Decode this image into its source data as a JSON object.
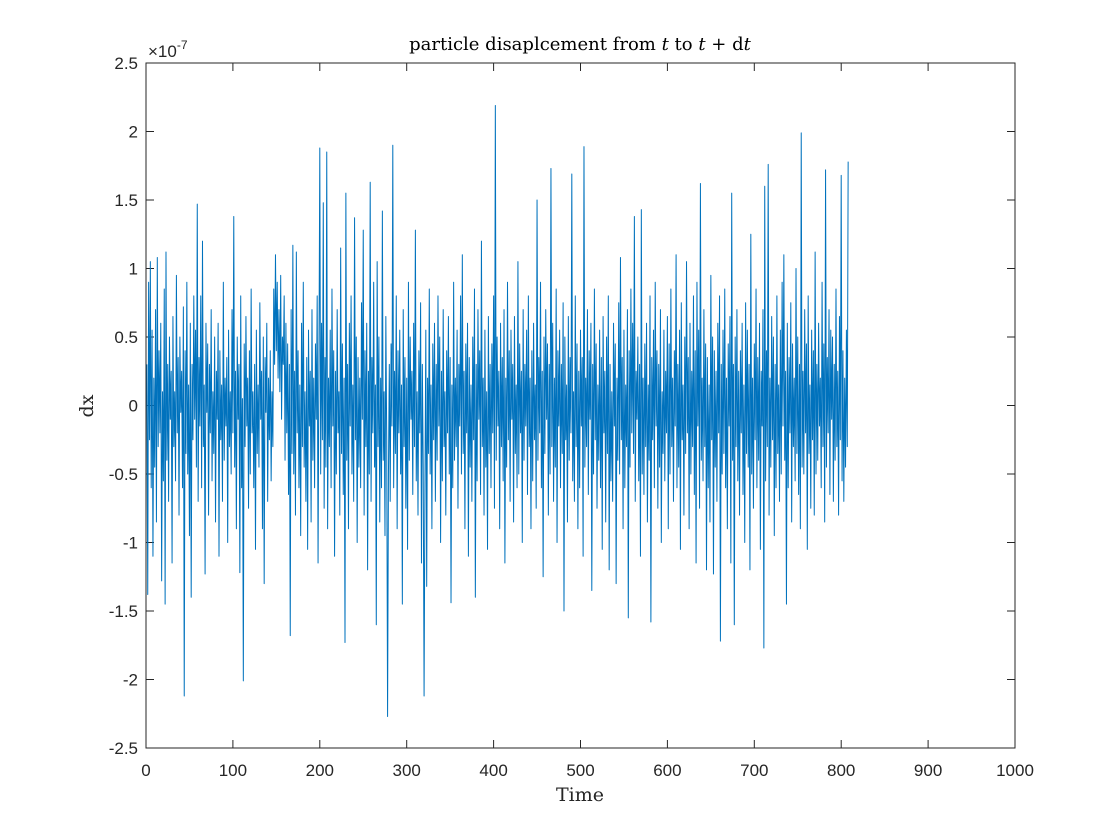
{
  "chart_data": {
    "type": "line",
    "title": "particle disaplcement from t to t + dt",
    "title_parts": [
      "particle disaplcement from ",
      "t",
      " to ",
      "t",
      " + d",
      "t"
    ],
    "xlabel": "Time",
    "ylabel": "dx",
    "exponent_label": "×10",
    "exponent_power": "-7",
    "xlim": [
      0,
      1000
    ],
    "ylim": [
      -2.5,
      2.5
    ],
    "y_scale_factor": 1e-07,
    "xticks": [
      "0",
      "100",
      "200",
      "300",
      "400",
      "500",
      "600",
      "700",
      "800",
      "900",
      "1000"
    ],
    "yticks": [
      "-2.5",
      "-2",
      "-1.5",
      "-1",
      "-0.5",
      "0",
      "0.5",
      "1",
      "1.5",
      "2",
      "2.5"
    ],
    "grid": false,
    "legend": "none",
    "series_color": "#0072BD",
    "series": [
      {
        "x_start": 1,
        "x_step": 1,
        "values": [
          0.3,
          -1.38,
          0.9,
          -0.25,
          1.05,
          -0.6,
          0.55,
          -1.1,
          0.2,
          -0.45,
          0.7,
          -0.85,
          1.08,
          -0.3,
          0.4,
          -0.2,
          0.6,
          -1.28,
          0.1,
          -0.55,
          0.85,
          -1.45,
          1.12,
          -0.4,
          0.3,
          -0.7,
          0.5,
          -0.1,
          0.25,
          -1.15,
          0.65,
          -0.3,
          0.1,
          -0.55,
          0.95,
          -0.2,
          0.35,
          -0.8,
          0.5,
          -0.05,
          0.25,
          -0.6,
          0.72,
          -2.12,
          0.4,
          -0.35,
          0.9,
          -0.5,
          0.15,
          -0.95,
          0.6,
          -1.4,
          0.3,
          -0.25,
          0.8,
          -0.1,
          0.55,
          -0.45,
          1.47,
          -0.7,
          0.35,
          -0.15,
          0.8,
          -0.6,
          1.2,
          -0.3,
          0.15,
          -1.23,
          0.6,
          -0.05,
          0.45,
          -0.8,
          0.3,
          -0.2,
          0.7,
          -0.55,
          0.1,
          -0.35,
          0.5,
          -0.85,
          0.25,
          -0.1,
          0.6,
          -1.1,
          0.4,
          -0.25,
          0.15,
          -0.7,
          0.9,
          -0.4,
          0.2,
          -0.15,
          0.35,
          -1.0,
          0.55,
          -0.3,
          0.1,
          -0.5,
          0.7,
          -0.2,
          1.38,
          -0.45,
          0.25,
          -0.9,
          0.5,
          -0.1,
          0.3,
          -1.22,
          0.8,
          -0.6,
          0.05,
          -2.01,
          0.45,
          -0.3,
          0.65,
          -0.15,
          0.2,
          -0.75,
          0.4,
          -0.5,
          0.85,
          -0.2,
          0.1,
          -0.6,
          0.3,
          -1.05,
          0.55,
          -0.35,
          0.15,
          -0.45,
          0.75,
          -0.1,
          0.25,
          -0.9,
          0.5,
          -1.3,
          0.35,
          -0.05,
          0.6,
          -0.7,
          0.2,
          -0.25,
          0.4,
          -0.55,
          0.1,
          -0.3,
          0.85,
          0.3,
          1.1,
          0.4,
          0.9,
          0.2,
          0.7,
          0.1,
          0.95,
          -0.1,
          0.5,
          0.3,
          0.8,
          -0.4,
          0.6,
          -0.2,
          0.45,
          -0.65,
          0.3,
          -1.68,
          0.7,
          -0.35,
          1.17,
          -0.5,
          0.25,
          -0.8,
          1.12,
          -0.2,
          0.4,
          -0.6,
          0.15,
          -0.95,
          0.6,
          -0.3,
          0.9,
          -0.45,
          0.1,
          -0.7,
          0.35,
          -1.05,
          0.55,
          -0.15,
          0.25,
          -0.85,
          0.7,
          -0.4,
          0.2,
          -0.6,
          0.45,
          -0.1,
          0.8,
          -1.15,
          0.3,
          1.88,
          -0.5,
          0.6,
          -0.25,
          1.48,
          -0.75,
          0.35,
          -0.45,
          1.85,
          -0.9,
          0.2,
          -0.3,
          0.55,
          -0.6,
          0.85,
          -0.15,
          0.4,
          -1.1,
          0.25,
          -0.5,
          0.7,
          -0.2,
          0.1,
          -0.8,
          1.15,
          -0.35,
          0.45,
          -0.65,
          0.2,
          -1.73,
          1.55,
          -0.4,
          0.3,
          -0.9,
          0.6,
          -0.15,
          0.8,
          -0.5,
          0.15,
          -0.7,
          1.37,
          -0.25,
          0.5,
          -1.0,
          0.35,
          -0.45,
          0.2,
          -0.6,
          0.75,
          -0.1,
          1.28,
          -0.8,
          0.4,
          -0.3,
          0.6,
          -1.2,
          0.25,
          -0.5,
          1.63,
          -0.7,
          0.35,
          -0.2,
          0.9,
          -0.45,
          0.15,
          -1.6,
          1.05,
          -0.3,
          0.5,
          -0.85,
          0.2,
          -0.6,
          1.42,
          -0.4,
          0.1,
          -0.95,
          0.65,
          -0.25,
          -2.27,
          -0.5,
          0.3,
          -0.7,
          0.45,
          -0.15,
          1.9,
          -0.6,
          0.25,
          -0.35,
          0.8,
          -0.9,
          0.4,
          -0.2,
          0.55,
          -0.5,
          0.15,
          -1.45,
          0.7,
          -0.3,
          0.35,
          -0.75,
          0.2,
          -1.05,
          0.9,
          -0.4,
          0.5,
          -0.1,
          0.25,
          -0.65,
          0.6,
          -0.3,
          1.28,
          -0.55,
          0.1,
          -0.8,
          0.4,
          -0.2,
          0.75,
          -1.15,
          0.3,
          -0.45,
          -2.12,
          -0.6,
          0.55,
          -1.32,
          0.2,
          -0.35,
          0.85,
          -0.5,
          0.15,
          -0.9,
          0.45,
          -0.25,
          0.6,
          -0.7,
          0.3,
          -0.4,
          0.8,
          -0.15,
          0.5,
          -1.0,
          0.25,
          -0.55,
          0.7,
          -0.3,
          0.1,
          -0.8,
          0.4,
          -0.2,
          0.65,
          -0.5,
          0.35,
          -1.44,
          0.15,
          -0.6,
          0.9,
          -0.4,
          0.2,
          -0.3,
          0.55,
          -0.75,
          0.3,
          -0.15,
          0.8,
          -0.5,
          1.1,
          -0.35,
          0.25,
          -0.9,
          0.45,
          -0.2,
          0.6,
          -1.1,
          0.35,
          -0.45,
          0.15,
          -0.7,
          0.5,
          -0.25,
          0.85,
          -1.4,
          0.3,
          -0.55,
          0.7,
          -0.1,
          0.4,
          -0.65,
          1.2,
          -0.3,
          0.2,
          -0.8,
          0.55,
          -0.45,
          0.1,
          -1.05,
          0.65,
          -0.35,
          0.3,
          -0.6,
          0.45,
          -0.2,
          0.8,
          -0.75,
          2.19,
          -0.4,
          0.5,
          -0.15,
          0.25,
          -0.9,
          0.6,
          -0.3,
          0.35,
          -0.55,
          0.7,
          -1.15,
          0.2,
          -0.45,
          0.9,
          -0.25,
          0.4,
          -0.7,
          0.55,
          -0.1,
          0.3,
          -0.85,
          0.65,
          -0.35,
          0.15,
          -0.6,
          1.05,
          -0.5,
          0.45,
          -0.2,
          0.25,
          -1.0,
          0.7,
          -0.4,
          0.3,
          -0.15,
          0.55,
          -0.65,
          0.8,
          -0.3,
          0.2,
          -0.9,
          0.4,
          -0.55,
          0.6,
          -0.25,
          0.15,
          -0.75,
          1.5,
          -0.4,
          0.35,
          -0.2,
          0.9,
          -0.6,
          0.25,
          -1.25,
          0.5,
          -0.35,
          0.7,
          -0.1,
          0.45,
          -0.8,
          0.3,
          -0.5,
          1.73,
          -0.3,
          0.6,
          -0.7,
          0.2,
          -0.45,
          0.85,
          -1.0,
          0.4,
          -0.15,
          0.55,
          -0.6,
          0.3,
          -0.35,
          0.75,
          -1.5,
          0.5,
          -0.25,
          0.15,
          -0.85,
          0.65,
          -0.4,
          0.35,
          -0.2,
          1.69,
          -0.55,
          0.1,
          -0.7,
          0.8,
          -0.3,
          0.45,
          -0.9,
          0.25,
          -0.6,
          0.55,
          -0.15,
          0.35,
          -1.1,
          1.89,
          -0.45,
          0.2,
          -0.3,
          0.7,
          -0.65,
          0.4,
          -0.1,
          0.6,
          -1.35,
          0.3,
          -0.5,
          0.85,
          -0.25,
          0.45,
          -0.75,
          0.15,
          -0.4,
          0.55,
          -0.6,
          0.35,
          -1.05,
          0.65,
          -0.2,
          0.25,
          -0.85,
          0.5,
          -0.35,
          0.8,
          -1.2,
          0.3,
          -0.55,
          0.1,
          -0.7,
          0.6,
          -0.15,
          0.45,
          -1.3,
          0.2,
          -0.4,
          0.75,
          -0.5,
          1.08,
          -0.25,
          0.35,
          -0.9,
          0.55,
          -0.6,
          0.15,
          -0.3,
          0.7,
          -1.55,
          0.4,
          -0.45,
          0.85,
          -0.2,
          0.6,
          -0.35,
          1.38,
          -0.7,
          0.25,
          -0.1,
          0.5,
          -0.55,
          0.3,
          -1.1,
          1.43,
          -0.5,
          0.2,
          -0.65,
          0.45,
          -0.3,
          0.6,
          -0.85,
          0.15,
          -0.4,
          0.8,
          -1.58,
          0.35,
          -0.25,
          0.55,
          -0.6,
          0.9,
          -0.15,
          0.4,
          -0.75,
          0.3,
          -0.45,
          0.7,
          -1.0,
          0.1,
          -0.35,
          0.55,
          -0.55,
          0.25,
          -0.2,
          0.65,
          -0.9,
          0.45,
          -0.5,
          0.85,
          -0.3,
          0.2,
          -0.7,
          0.4,
          -0.15,
          1.1,
          -0.6,
          0.3,
          -0.45,
          0.55,
          -1.05,
          0.75,
          -0.25,
          0.15,
          -0.8,
          0.5,
          -0.35,
          1.05,
          -0.2,
          0.35,
          -0.9,
          0.6,
          -0.5,
          0.25,
          -0.3,
          0.8,
          -0.65,
          0.4,
          -1.15,
          0.9,
          -0.15,
          0.55,
          -0.75,
          1.62,
          -0.4,
          0.2,
          -0.55,
          0.7,
          -0.3,
          0.45,
          -1.2,
          0.35,
          -0.6,
          0.15,
          -0.85,
          0.95,
          -0.25,
          0.5,
          -1.23,
          0.4,
          -0.45,
          0.25,
          -0.7,
          0.6,
          -0.2,
          0.8,
          -1.72,
          0.3,
          -0.5,
          0.55,
          -0.35,
          0.85,
          -0.6,
          0.2,
          -0.9,
          0.45,
          -0.15,
          0.65,
          -1.15,
          1.55,
          -0.4,
          0.3,
          -1.6,
          0.5,
          -0.3,
          0.7,
          -0.55,
          0.25,
          -0.8,
          0.4,
          -0.2,
          0.6,
          -0.65,
          0.15,
          -1.0,
          0.75,
          -0.35,
          0.55,
          -0.45,
          0.3,
          -1.2,
          1.25,
          -0.5,
          0.2,
          -0.75,
          0.45,
          -0.25,
          0.85,
          -0.6,
          0.35,
          -0.4,
          0.6,
          -1.05,
          0.25,
          -0.15,
          0.7,
          -1.77,
          1.6,
          -0.55,
          0.4,
          -0.3,
          1.76,
          -0.8,
          0.2,
          -0.45,
          0.65,
          -0.25,
          0.5,
          -0.95,
          0.3,
          -0.6,
          0.8,
          -0.35,
          0.15,
          -0.7,
          0.55,
          -0.5,
          0.9,
          -0.15,
          1.1,
          -0.4,
          0.25,
          -1.45,
          0.6,
          -0.6,
          0.35,
          -0.2,
          0.75,
          -0.85,
          0.45,
          -0.3,
          0.2,
          -0.55,
          1.0,
          -0.35,
          0.5,
          -0.65,
          0.3,
          -0.9,
          1.99,
          -0.45,
          0.25,
          -0.5,
          0.7,
          -0.2,
          0.45,
          -1.05,
          0.8,
          -0.35,
          0.15,
          -0.75,
          0.55,
          -0.25,
          0.4,
          -0.8,
          1.12,
          -0.5,
          0.3,
          -0.4,
          0.6,
          -0.15,
          0.2,
          -0.6,
          0.9,
          -0.3,
          0.45,
          -0.85,
          1.72,
          -0.45,
          0.35,
          -0.2,
          0.7,
          -0.65,
          0.55,
          -0.1,
          0.5,
          -0.7,
          0.3,
          -0.4,
          0.85,
          -0.3,
          0.25,
          -0.8,
          0.65,
          -0.25,
          1.68,
          -0.55,
          0.4,
          -0.7,
          0.2,
          -0.45,
          0.55,
          -0.3,
          1.78
        ]
      }
    ]
  }
}
